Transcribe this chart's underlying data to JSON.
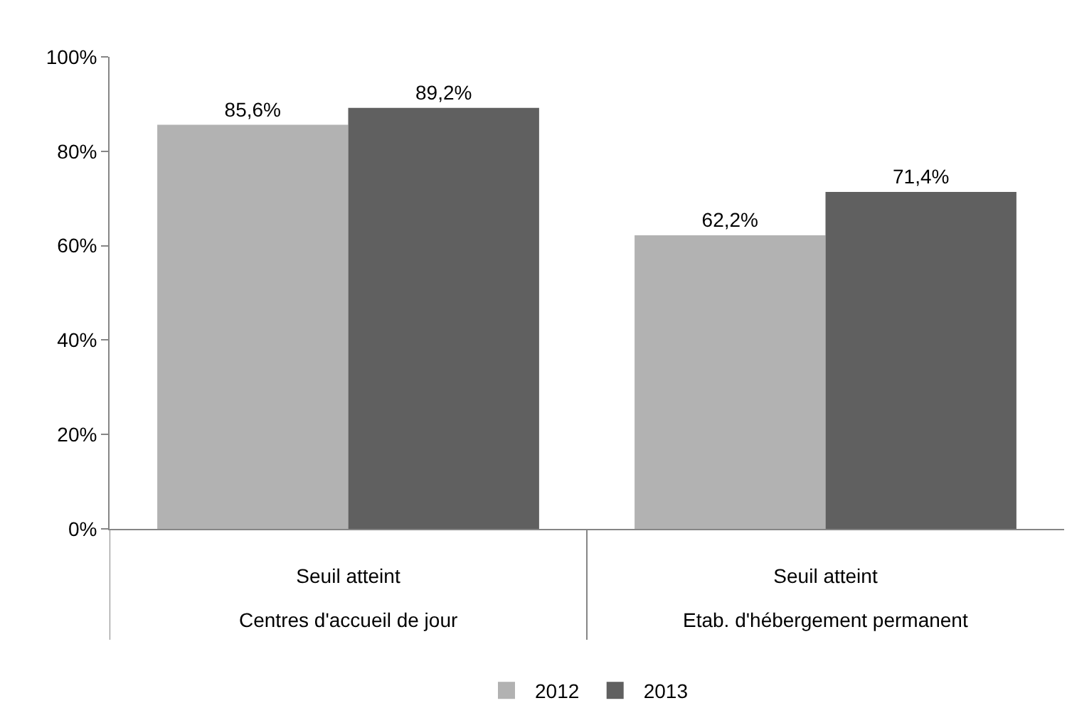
{
  "chart_data": {
    "type": "bar",
    "categories": [
      "Seuil atteint",
      "Seuil atteint"
    ],
    "annotations": [
      "Centres d'accueil de jour",
      "Etab. d'hébergement permanent"
    ],
    "series": [
      {
        "name": "2012",
        "color": "#b2b2b2",
        "values": [
          85.6,
          62.2
        ],
        "value_labels": [
          "85,6%",
          "62,2%"
        ]
      },
      {
        "name": "2013",
        "color": "#606060",
        "values": [
          89.2,
          71.4
        ],
        "value_labels": [
          "89,2%",
          "71,4%"
        ]
      }
    ],
    "ylim": [
      0,
      100
    ],
    "yticks": [
      {
        "value": 0,
        "label": "0%"
      },
      {
        "value": 20,
        "label": "20%"
      },
      {
        "value": 40,
        "label": "40%"
      },
      {
        "value": 60,
        "label": "60%"
      },
      {
        "value": 80,
        "label": "80%"
      },
      {
        "value": 100,
        "label": "100%"
      }
    ],
    "grid": false,
    "legend": "bottom"
  }
}
